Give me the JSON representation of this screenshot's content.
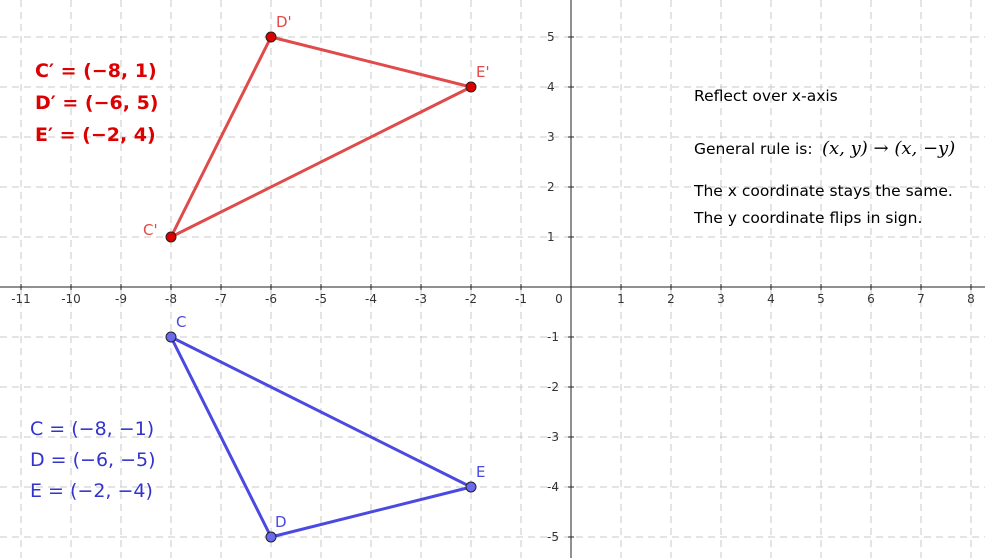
{
  "graph": {
    "x_range": [
      -11,
      8
    ],
    "y_range": [
      -5,
      5
    ],
    "grid": true,
    "x_ticks": [
      {
        "value": -11,
        "label": "-11"
      },
      {
        "value": -10,
        "label": "-10"
      },
      {
        "value": -9,
        "label": "-9"
      },
      {
        "value": -8,
        "label": "-8"
      },
      {
        "value": -7,
        "label": "-7"
      },
      {
        "value": -6,
        "label": "-6"
      },
      {
        "value": -5,
        "label": "-5"
      },
      {
        "value": -4,
        "label": "-4"
      },
      {
        "value": -3,
        "label": "-3"
      },
      {
        "value": -2,
        "label": "-2"
      },
      {
        "value": -1,
        "label": "-1"
      },
      {
        "value": 0,
        "label": "0"
      },
      {
        "value": 1,
        "label": "1"
      },
      {
        "value": 2,
        "label": "2"
      },
      {
        "value": 3,
        "label": "3"
      },
      {
        "value": 4,
        "label": "4"
      },
      {
        "value": 5,
        "label": "5"
      },
      {
        "value": 6,
        "label": "6"
      },
      {
        "value": 7,
        "label": "7"
      },
      {
        "value": 8,
        "label": "8"
      }
    ],
    "y_ticks": [
      {
        "value": 5,
        "label": "5"
      },
      {
        "value": 4,
        "label": "4"
      },
      {
        "value": 3,
        "label": "3"
      },
      {
        "value": 2,
        "label": "2"
      },
      {
        "value": 1,
        "label": "1"
      },
      {
        "value": -1,
        "label": "-1"
      },
      {
        "value": -2,
        "label": "-2"
      },
      {
        "value": -3,
        "label": "-3"
      },
      {
        "value": -4,
        "label": "-4"
      },
      {
        "value": -5,
        "label": "-5"
      }
    ]
  },
  "image_triangle": {
    "color": "#e04a4a",
    "point_fill": "#dd0000",
    "points": [
      {
        "name": "C'",
        "x": -8,
        "y": 1
      },
      {
        "name": "D'",
        "x": -6,
        "y": 5
      },
      {
        "name": "E'",
        "x": -2,
        "y": 4
      }
    ],
    "equations": [
      "C′ = (−8, 1)",
      "D′ = (−6, 5)",
      "E′ = (−2, 4)"
    ]
  },
  "original_triangle": {
    "color": "#4a4ae0",
    "point_fill": "#6a6af0",
    "points": [
      {
        "name": "C",
        "x": -8,
        "y": -1
      },
      {
        "name": "D",
        "x": -6,
        "y": -5
      },
      {
        "name": "E",
        "x": -2,
        "y": -4
      }
    ],
    "equations": [
      "C = (−8, −1)",
      "D = (−6, −5)",
      "E = (−2, −4)"
    ]
  },
  "notes": {
    "title": "Reflect over x-axis",
    "rule_prefix": "General rule is:",
    "rule_formula": "(x, y) → (x, −y)",
    "line1": "The x coordinate stays the same.",
    "line2": "The y coordinate flips in sign."
  }
}
